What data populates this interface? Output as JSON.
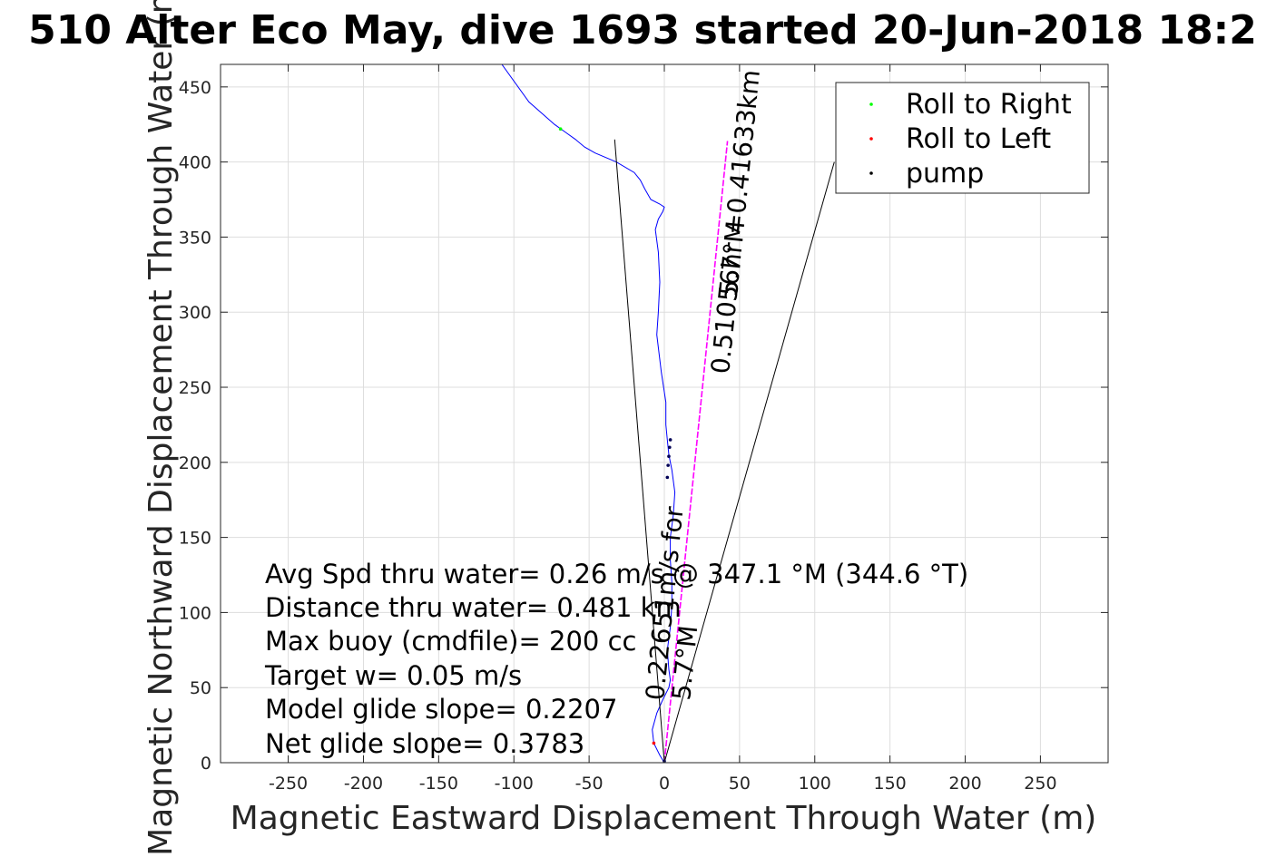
{
  "chart_data": {
    "type": "line",
    "title": "510 Alter Eco May, dive 1693 started 20-Jun-2018 18:2",
    "xlabel": "Magnetic Eastward Displacement Through Water (m)",
    "ylabel": "Magnetic Northward Displacement Through Water (m)",
    "xlim": [
      -295,
      295
    ],
    "ylim": [
      0,
      465
    ],
    "xticks": [
      -250,
      -200,
      -150,
      -100,
      -50,
      0,
      50,
      100,
      150,
      200,
      250
    ],
    "yticks": [
      0,
      50,
      100,
      150,
      200,
      250,
      300,
      350,
      400,
      450
    ],
    "grid": true,
    "legend": {
      "placement": "top-right",
      "entries": [
        {
          "label": "Roll to Right",
          "color": "#00ff00"
        },
        {
          "label": "Roll to Left",
          "color": "#ff0000"
        },
        {
          "label": "pump",
          "color": "#000000"
        }
      ]
    },
    "series": [
      {
        "kind": "track",
        "color": "#0000ff",
        "x": [
          0,
          -3,
          -7,
          -8,
          -5,
          -1,
          3,
          4,
          3,
          2,
          4,
          5,
          5,
          4,
          4,
          6,
          7,
          5,
          3,
          2,
          1,
          1,
          -2,
          -5,
          -4,
          -3,
          -4,
          -6,
          -4,
          -1,
          0,
          -3,
          -9,
          -13,
          -16,
          -20,
          -32,
          -46,
          -53,
          -59,
          -66,
          -73,
          -90,
          -108
        ],
        "y": [
          0,
          5,
          13,
          22,
          33,
          42,
          50,
          55,
          62,
          75,
          90,
          105,
          120,
          135,
          150,
          165,
          180,
          195,
          205,
          215,
          225,
          240,
          260,
          285,
          300,
          320,
          340,
          355,
          362,
          367,
          370,
          372,
          375,
          382,
          388,
          393,
          400,
          406,
          410,
          415,
          420,
          425,
          440,
          465
        ]
      },
      {
        "kind": "heading-line",
        "color": "#ff00ff",
        "x": [
          0,
          42
        ],
        "y": [
          0,
          414
        ]
      },
      {
        "kind": "wedge-left",
        "color": "#000000",
        "x": [
          0,
          -33
        ],
        "y": [
          0,
          415
        ]
      },
      {
        "kind": "wedge-right",
        "color": "#000000",
        "x": [
          0,
          113
        ],
        "y": [
          0,
          400
        ]
      }
    ],
    "markers": {
      "roll_right": [
        {
          "x": -69,
          "y": 422
        }
      ],
      "roll_left": [
        {
          "x": -7,
          "y": 13
        }
      ],
      "pump": [
        {
          "x": 2,
          "y": 190
        },
        {
          "x": 2.5,
          "y": 198
        },
        {
          "x": 3,
          "y": 204
        },
        {
          "x": 3.5,
          "y": 210
        },
        {
          "x": 4,
          "y": 215
        },
        {
          "x": 0,
          "y": 1
        }
      ]
    },
    "annotations": {
      "stats": [
        "Avg Spd thru water=  0.26 m/s @ 347.1 °M (344.6 °T)",
        "Distance thru water=  0.481 km",
        "Max buoy (cmdfile)= 200 cc",
        "Target w= 0.05 m/s",
        "Model glide slope= 0.2207",
        "Net glide slope= 0.3783"
      ],
      "along_track_label": "0.51056hr =0.41633km",
      "along_track_sub": "5.7°M",
      "short_track_label": "0.22651m/s for",
      "short_track_sub": "5.7°M"
    }
  }
}
